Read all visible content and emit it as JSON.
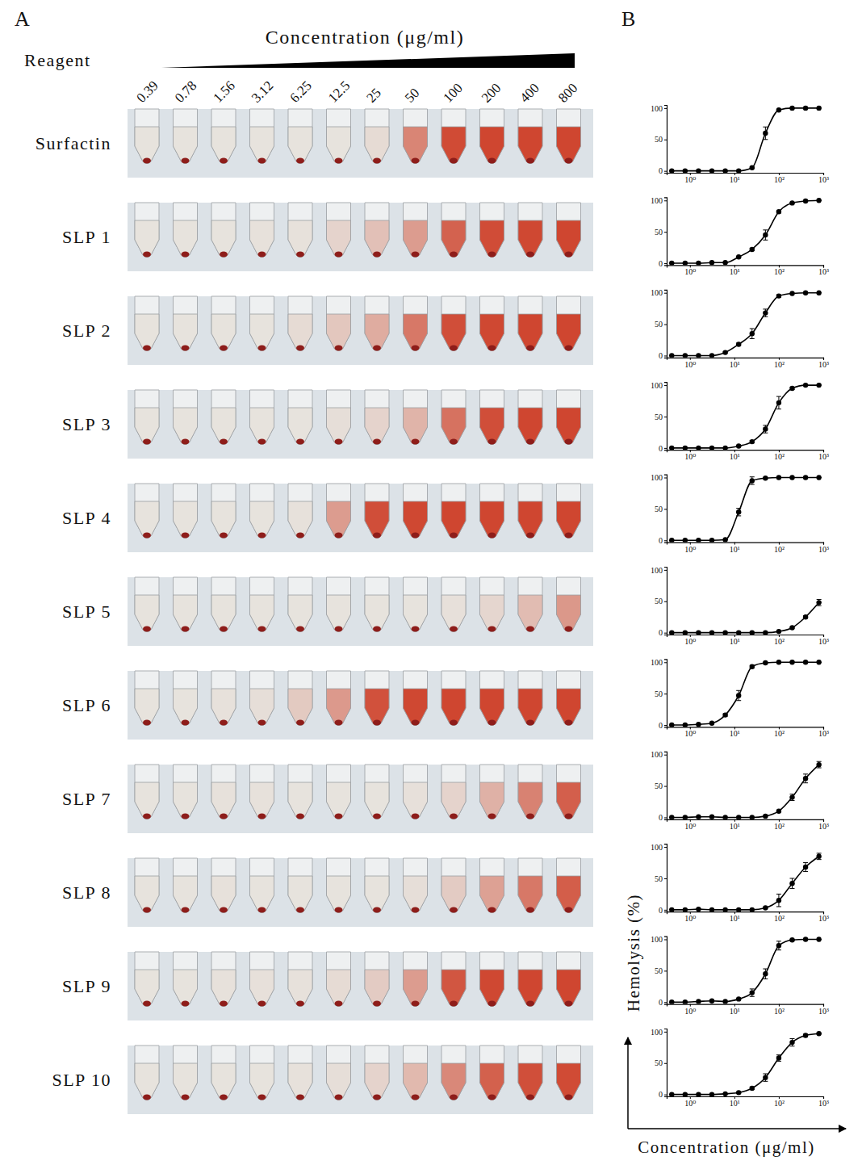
{
  "figure": {
    "panel_labels": [
      "A",
      "B"
    ],
    "reagent_label": "Reagent",
    "concentration_header": "Concentration (μg/ml)",
    "y_label": "Hemolysis (%)",
    "x_label": "Concentration (μg/ml)"
  },
  "chart_data": [
    {
      "type": "line",
      "log": "x",
      "marker": "circle",
      "x": [
        0.39,
        0.78,
        1.56,
        3.12,
        6.25,
        12.5,
        25,
        50,
        100,
        200,
        400,
        800
      ],
      "xlim": [
        0.3,
        1000
      ],
      "ylim": [
        -3,
        105
      ],
      "xticks": [
        {
          "value": 1,
          "label": "10⁰"
        },
        {
          "value": 10,
          "label": "10¹"
        },
        {
          "value": 100,
          "label": "10²"
        },
        {
          "value": 1000,
          "label": "10³"
        }
      ],
      "yticks": [
        0,
        50,
        100
      ],
      "series": [
        {
          "name": "Surfactin",
          "color": "#000000",
          "values": [
            0,
            0,
            0,
            0,
            0,
            0,
            5,
            60,
            97,
            100,
            100,
            100
          ],
          "errors": [
            0,
            0,
            0,
            0,
            0,
            0,
            1,
            10,
            1,
            0,
            0,
            0
          ]
        }
      ]
    },
    {
      "type": "line",
      "log": "x",
      "marker": "circle",
      "x": [
        0.39,
        0.78,
        1.56,
        3.12,
        6.25,
        12.5,
        25,
        50,
        100,
        200,
        400,
        800
      ],
      "xlim": [
        0.3,
        1000
      ],
      "ylim": [
        -3,
        105
      ],
      "xticks": [
        {
          "value": 1,
          "label": "10⁰"
        },
        {
          "value": 10,
          "label": "10¹"
        },
        {
          "value": 100,
          "label": "10²"
        },
        {
          "value": 1000,
          "label": "10³"
        }
      ],
      "yticks": [
        0,
        50,
        100
      ],
      "series": [
        {
          "name": "SLP 1",
          "color": "#000000",
          "values": [
            0,
            0,
            0,
            1,
            1,
            10,
            22,
            45,
            82,
            96,
            99,
            100
          ],
          "errors": [
            0,
            0,
            0,
            0,
            0,
            1,
            2,
            8,
            2,
            1,
            0,
            0
          ]
        }
      ]
    },
    {
      "type": "line",
      "log": "x",
      "marker": "circle",
      "x": [
        0.39,
        0.78,
        1.56,
        3.12,
        6.25,
        12.5,
        25,
        50,
        100,
        200,
        400,
        800
      ],
      "xlim": [
        0.3,
        1000
      ],
      "ylim": [
        -3,
        105
      ],
      "xticks": [
        {
          "value": 1,
          "label": "10⁰"
        },
        {
          "value": 10,
          "label": "10¹"
        },
        {
          "value": 100,
          "label": "10²"
        },
        {
          "value": 1000,
          "label": "10³"
        }
      ],
      "yticks": [
        0,
        50,
        100
      ],
      "series": [
        {
          "name": "SLP 2",
          "color": "#000000",
          "values": [
            0,
            0,
            0,
            0,
            5,
            18,
            35,
            68,
            95,
            99,
            100,
            100
          ],
          "errors": [
            0,
            0,
            0,
            0,
            1,
            2,
            8,
            6,
            2,
            0,
            0,
            0
          ]
        }
      ]
    },
    {
      "type": "line",
      "log": "x",
      "marker": "circle",
      "x": [
        0.39,
        0.78,
        1.56,
        3.12,
        6.25,
        12.5,
        25,
        50,
        100,
        200,
        400,
        800
      ],
      "xlim": [
        0.3,
        1000
      ],
      "ylim": [
        -3,
        105
      ],
      "xticks": [
        {
          "value": 1,
          "label": "10⁰"
        },
        {
          "value": 10,
          "label": "10¹"
        },
        {
          "value": 100,
          "label": "10²"
        },
        {
          "value": 1000,
          "label": "10³"
        }
      ],
      "yticks": [
        0,
        50,
        100
      ],
      "series": [
        {
          "name": "SLP 3",
          "color": "#000000",
          "values": [
            0,
            0,
            0,
            0,
            0,
            3,
            10,
            30,
            72,
            95,
            100,
            100
          ],
          "errors": [
            0,
            0,
            0,
            0,
            0,
            1,
            2,
            6,
            10,
            2,
            0,
            0
          ]
        }
      ]
    },
    {
      "type": "line",
      "log": "x",
      "marker": "circle",
      "x": [
        0.39,
        0.78,
        1.56,
        3.12,
        6.25,
        12.5,
        25,
        50,
        100,
        200,
        400,
        800
      ],
      "xlim": [
        0.3,
        1000
      ],
      "ylim": [
        -3,
        105
      ],
      "xticks": [
        {
          "value": 1,
          "label": "10⁰"
        },
        {
          "value": 10,
          "label": "10¹"
        },
        {
          "value": 100,
          "label": "10²"
        },
        {
          "value": 1000,
          "label": "10³"
        }
      ],
      "yticks": [
        0,
        50,
        100
      ],
      "series": [
        {
          "name": "SLP 4",
          "color": "#000000",
          "values": [
            0,
            0,
            0,
            0,
            1,
            45,
            95,
            99,
            100,
            100,
            100,
            100
          ],
          "errors": [
            0,
            0,
            0,
            0,
            0,
            6,
            6,
            1,
            0,
            0,
            0,
            0
          ]
        }
      ]
    },
    {
      "type": "line",
      "log": "x",
      "marker": "circle",
      "x": [
        0.39,
        0.78,
        1.56,
        3.12,
        6.25,
        12.5,
        25,
        50,
        100,
        200,
        400,
        800
      ],
      "xlim": [
        0.3,
        1000
      ],
      "ylim": [
        -3,
        105
      ],
      "xticks": [
        {
          "value": 1,
          "label": "10⁰"
        },
        {
          "value": 10,
          "label": "10¹"
        },
        {
          "value": 100,
          "label": "10²"
        },
        {
          "value": 1000,
          "label": "10³"
        }
      ],
      "yticks": [
        0,
        50,
        100
      ],
      "series": [
        {
          "name": "SLP 5",
          "color": "#000000",
          "values": [
            0,
            0,
            0,
            0,
            0,
            0,
            0,
            0,
            2,
            8,
            25,
            48
          ],
          "errors": [
            0,
            0,
            0,
            0,
            0,
            0,
            0,
            0,
            0,
            1,
            2,
            5
          ]
        }
      ]
    },
    {
      "type": "line",
      "log": "x",
      "marker": "circle",
      "x": [
        0.39,
        0.78,
        1.56,
        3.12,
        6.25,
        12.5,
        25,
        50,
        100,
        200,
        400,
        800
      ],
      "xlim": [
        0.3,
        1000
      ],
      "ylim": [
        -3,
        105
      ],
      "xticks": [
        {
          "value": 1,
          "label": "10⁰"
        },
        {
          "value": 10,
          "label": "10¹"
        },
        {
          "value": 100,
          "label": "10²"
        },
        {
          "value": 1000,
          "label": "10³"
        }
      ],
      "yticks": [
        0,
        50,
        100
      ],
      "series": [
        {
          "name": "SLP 6",
          "color": "#000000",
          "values": [
            0,
            0,
            1,
            3,
            16,
            47,
            93,
            99,
            100,
            100,
            100,
            100
          ],
          "errors": [
            0,
            0,
            0,
            0,
            2,
            8,
            2,
            1,
            0,
            0,
            0,
            0
          ]
        }
      ]
    },
    {
      "type": "line",
      "log": "x",
      "marker": "circle",
      "x": [
        0.39,
        0.78,
        1.56,
        3.12,
        6.25,
        12.5,
        25,
        50,
        100,
        200,
        400,
        800
      ],
      "xlim": [
        0.3,
        1000
      ],
      "ylim": [
        -3,
        105
      ],
      "xticks": [
        {
          "value": 1,
          "label": "10⁰"
        },
        {
          "value": 10,
          "label": "10¹"
        },
        {
          "value": 100,
          "label": "10²"
        },
        {
          "value": 1000,
          "label": "10³"
        }
      ],
      "yticks": [
        0,
        50,
        100
      ],
      "series": [
        {
          "name": "SLP 7",
          "color": "#000000",
          "values": [
            0,
            0,
            1,
            1,
            0,
            0,
            0,
            2,
            10,
            32,
            62,
            84
          ],
          "errors": [
            0,
            0,
            0,
            0,
            0,
            0,
            0,
            0,
            1,
            5,
            7,
            5
          ]
        }
      ]
    },
    {
      "type": "line",
      "log": "x",
      "marker": "circle",
      "x": [
        0.39,
        0.78,
        1.56,
        3.12,
        6.25,
        12.5,
        25,
        50,
        100,
        200,
        400,
        800
      ],
      "xlim": [
        0.3,
        1000
      ],
      "ylim": [
        -3,
        105
      ],
      "xticks": [
        {
          "value": 1,
          "label": "10⁰"
        },
        {
          "value": 10,
          "label": "10¹"
        },
        {
          "value": 100,
          "label": "10²"
        },
        {
          "value": 1000,
          "label": "10³"
        }
      ],
      "yticks": [
        0,
        50,
        100
      ],
      "series": [
        {
          "name": "SLP 8",
          "color": "#000000",
          "values": [
            0,
            0,
            1,
            0,
            0,
            0,
            0,
            3,
            15,
            42,
            68,
            85
          ],
          "errors": [
            0,
            0,
            0,
            0,
            0,
            0,
            0,
            1,
            10,
            8,
            7,
            5
          ]
        }
      ]
    },
    {
      "type": "line",
      "log": "x",
      "marker": "circle",
      "x": [
        0.39,
        0.78,
        1.56,
        3.12,
        6.25,
        12.5,
        25,
        50,
        100,
        200,
        400,
        800
      ],
      "xlim": [
        0.3,
        1000
      ],
      "ylim": [
        -3,
        105
      ],
      "xticks": [
        {
          "value": 1,
          "label": "10⁰"
        },
        {
          "value": 10,
          "label": "10¹"
        },
        {
          "value": 100,
          "label": "10²"
        },
        {
          "value": 1000,
          "label": "10³"
        }
      ],
      "yticks": [
        0,
        50,
        100
      ],
      "series": [
        {
          "name": "SLP 9",
          "color": "#000000",
          "values": [
            0,
            0,
            1,
            2,
            1,
            5,
            15,
            45,
            90,
            99,
            100,
            100
          ],
          "errors": [
            0,
            0,
            0,
            0,
            0,
            1,
            6,
            8,
            7,
            1,
            0,
            0
          ]
        }
      ]
    },
    {
      "type": "line",
      "log": "x",
      "marker": "circle",
      "x": [
        0.39,
        0.78,
        1.56,
        3.12,
        6.25,
        12.5,
        25,
        50,
        100,
        200,
        400,
        800
      ],
      "xlim": [
        0.3,
        1000
      ],
      "ylim": [
        -3,
        105
      ],
      "xticks": [
        {
          "value": 1,
          "label": "10⁰"
        },
        {
          "value": 10,
          "label": "10¹"
        },
        {
          "value": 100,
          "label": "10²"
        },
        {
          "value": 1000,
          "label": "10³"
        }
      ],
      "yticks": [
        0,
        50,
        100
      ],
      "series": [
        {
          "name": "SLP 10",
          "color": "#000000",
          "values": [
            0,
            0,
            0,
            0,
            1,
            3,
            10,
            27,
            58,
            83,
            94,
            97
          ],
          "errors": [
            0,
            0,
            0,
            0,
            0,
            1,
            2,
            6,
            5,
            6,
            2,
            1
          ]
        }
      ]
    }
  ]
}
